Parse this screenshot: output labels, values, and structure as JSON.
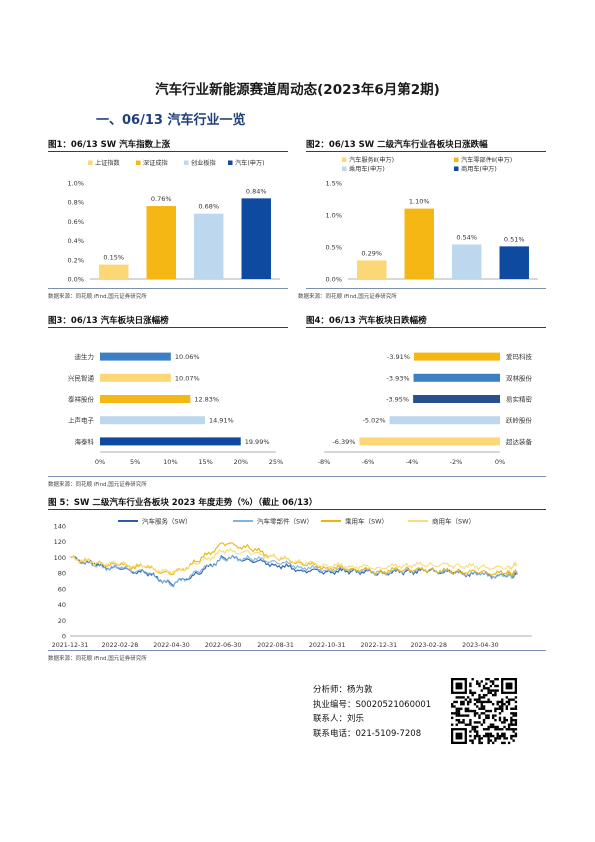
{
  "report": {
    "title": "汽车行业新能源赛道周动态(2023年6月第2期)",
    "section": "一、06/13 汽车行业一览"
  },
  "figures": [
    {
      "title": "图1：06/13 SW 汽车指数上涨",
      "source": "数据来源：同花顺 iFind,国元证券研究所"
    },
    {
      "title": "图2：06/13 SW 二级汽车行业各板块日涨跌幅",
      "source": "数据来源：同花顺 iFind,国元证券研究所"
    },
    {
      "title": "图3：06/13 汽车板块日涨幅榜",
      "source": ""
    },
    {
      "title": "图4：06/13 汽车板块日跌幅榜",
      "source": ""
    },
    {
      "title": "图 5：SW 二级汽车行业各板块 2023 年度走势（%）（截止 06/13）",
      "source": "数据来源：同花顺 iFind,国元证券研究所"
    }
  ],
  "analyst": {
    "lines": [
      "分析师：杨为敦",
      "执业编号：S0020521060001",
      "联系人：刘乐",
      "联系电话：021-5109-7208"
    ]
  },
  "colors": {
    "light_yellow": "#fbd776",
    "orange": "#f5b713",
    "light_blue": "#bdd7ee",
    "navy": "#0d4aa0",
    "mid_blue": "#3d7fc4",
    "dark_blue": "#2a4f8e",
    "accent": "#1f3f7a"
  },
  "chart_data": [
    {
      "type": "bar",
      "title": "图1：06/13 SW 汽车指数上涨",
      "categories": [
        "上证指数",
        "深证成指",
        "创业板指",
        "汽车(申万)"
      ],
      "values": [
        0.15,
        0.76,
        0.68,
        0.84
      ],
      "labels": [
        "0.15%",
        "0.76%",
        "0.68%",
        "0.84%"
      ],
      "colors": [
        "#fbd776",
        "#f5b713",
        "#bdd7ee",
        "#0d4aa0"
      ],
      "yticks": [
        "0.0%",
        "0.2%",
        "0.4%",
        "0.6%",
        "0.8%",
        "1.0%"
      ],
      "ylim": [
        0,
        1.0
      ],
      "legend": "top"
    },
    {
      "type": "bar",
      "title": "图2：06/13 SW 二级汽车行业各板块日涨跌幅",
      "categories": [
        "汽车服务Ⅱ(申万)",
        "汽车零部件Ⅱ(申万)",
        "乘用车(申万)",
        "商用车(申万)"
      ],
      "values": [
        0.29,
        1.1,
        0.54,
        0.51
      ],
      "labels": [
        "0.29%",
        "1.10%",
        "0.54%",
        "0.51%"
      ],
      "colors": [
        "#fbd776",
        "#f5b713",
        "#bdd7ee",
        "#0d4aa0"
      ],
      "yticks": [
        "0.0%",
        "0.5%",
        "1.0%",
        "1.5%"
      ],
      "ylim": [
        0,
        1.5
      ],
      "legend": "top"
    },
    {
      "type": "bar",
      "title": "图3：06/13 汽车板块日涨幅榜",
      "orientation": "horizontal",
      "categories": [
        "迪生力",
        "兴民智通",
        "泰祥股份",
        "上声电子",
        "海泰科"
      ],
      "values": [
        10.06,
        10.07,
        12.83,
        14.91,
        19.99
      ],
      "labels": [
        "10.06%",
        "10.07%",
        "12.83%",
        "14.91%",
        "19.99%"
      ],
      "colors": [
        "#3d7fc4",
        "#fbd776",
        "#f5b713",
        "#bdd7ee",
        "#0d4aa0"
      ],
      "xticks": [
        "0%",
        "5%",
        "10%",
        "15%",
        "20%",
        "25%"
      ],
      "xlim": [
        0,
        25
      ]
    },
    {
      "type": "bar",
      "title": "图4：06/13 汽车板块日跌幅榜",
      "orientation": "horizontal",
      "categories": [
        "爱玛科技",
        "双林股份",
        "易实精密",
        "跃岭股份",
        "超达装备"
      ],
      "values": [
        -3.91,
        -3.93,
        -3.95,
        -5.02,
        -6.39
      ],
      "labels": [
        "-3.91%",
        "-3.93%",
        "-3.95%",
        "-5.02%",
        "-6.39%"
      ],
      "colors": [
        "#f5b713",
        "#3d7fc4",
        "#2a4f8e",
        "#bdd7ee",
        "#fbd776"
      ],
      "xticks": [
        "-8%",
        "-6%",
        "-4%",
        "-2%",
        "0%"
      ],
      "xlim": [
        -8,
        0
      ]
    },
    {
      "type": "line",
      "title": "图 5：SW 二级汽车行业各板块 2023 年度走势（%）（截止 06/13）",
      "x": [
        "2021-12-31",
        "2022-01-31",
        "2022-02-28",
        "2022-03-31",
        "2022-04-30",
        "2022-05-31",
        "2022-06-30",
        "2022-07-31",
        "2022-08-31",
        "2022-09-30",
        "2022-10-31",
        "2022-11-30",
        "2022-12-31",
        "2023-01-31",
        "2023-02-28",
        "2023-03-31",
        "2023-04-30",
        "2023-05-31",
        "2023-06-13"
      ],
      "xticks": [
        "2021-12-31",
        "2022-02-28",
        "2022-04-30",
        "2022-06-30",
        "2022-08-31",
        "2022-10-31",
        "2022-12-31",
        "2023-02-28",
        "2023-04-30"
      ],
      "yticks": [
        "0",
        "20",
        "40",
        "60",
        "80",
        "100",
        "120",
        "140"
      ],
      "ylim": [
        0,
        140
      ],
      "legend": "top",
      "series": [
        {
          "name": "汽车服务（SW）",
          "color": "#2a5caa",
          "values": [
            100,
            90,
            85,
            80,
            66,
            79,
            100,
            97,
            91,
            84,
            82,
            83,
            80,
            82,
            83,
            80,
            78,
            76,
            79
          ]
        },
        {
          "name": "汽车零部件（SW）",
          "color": "#7fb3e0",
          "values": [
            100,
            88,
            86,
            81,
            64,
            82,
            98,
            99,
            95,
            88,
            84,
            85,
            80,
            83,
            84,
            80,
            78,
            75,
            80
          ]
        },
        {
          "name": "乘用车（SW）",
          "color": "#e8b511",
          "values": [
            100,
            92,
            90,
            87,
            78,
            95,
            118,
            112,
            100,
            93,
            87,
            86,
            82,
            85,
            84,
            82,
            81,
            79,
            81
          ]
        },
        {
          "name": "商用车（SW）",
          "color": "#f7dc7d",
          "values": [
            100,
            93,
            92,
            88,
            80,
            92,
            108,
            106,
            100,
            94,
            90,
            89,
            87,
            90,
            91,
            90,
            88,
            86,
            91
          ]
        }
      ]
    }
  ]
}
